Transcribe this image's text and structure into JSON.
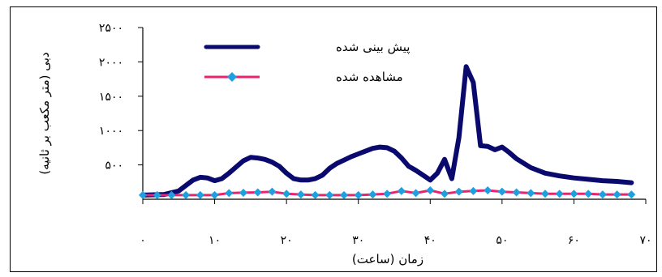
{
  "chart_data": {
    "type": "line",
    "xlabel": "زمان (ساعت)",
    "ylabel": "دبی (متر مکعب بر ثانیه)",
    "xlim": [
      0,
      70
    ],
    "ylim": [
      0,
      2500
    ],
    "x_ticks": [
      {
        "value": 0,
        "label": "۰"
      },
      {
        "value": 10,
        "label": "۱۰"
      },
      {
        "value": 20,
        "label": "۲۰"
      },
      {
        "value": 30,
        "label": "۳۰"
      },
      {
        "value": 40,
        "label": "۴۰"
      },
      {
        "value": 50,
        "label": "۵۰"
      },
      {
        "value": 60,
        "label": "۶۰"
      },
      {
        "value": 70,
        "label": "۷۰"
      }
    ],
    "y_ticks": [
      {
        "value": 500,
        "label": "۵۰۰"
      },
      {
        "value": 1000,
        "label": "۱۰۰۰"
      },
      {
        "value": 1500,
        "label": "۱۵۰۰"
      },
      {
        "value": 2000,
        "label": "۲۰۰۰"
      },
      {
        "value": 2500,
        "label": "۲۵۰۰"
      }
    ],
    "legend_position": "top-left",
    "series": [
      {
        "name": "پیش بینی شده",
        "color": "#0a0a6e",
        "marker": "none",
        "x": [
          0,
          3,
          5,
          6,
          7,
          8,
          9,
          10,
          11,
          12,
          13,
          14,
          15,
          16,
          17,
          18,
          19,
          20,
          21,
          22,
          23,
          24,
          25,
          26,
          27,
          28,
          29,
          30,
          31,
          32,
          33,
          34,
          35,
          36,
          37,
          38,
          39,
          40,
          41,
          42,
          43,
          44,
          45,
          46,
          47,
          48,
          49,
          50,
          51,
          52,
          54,
          56,
          58,
          60,
          62,
          64,
          66,
          68
        ],
        "y": [
          60,
          70,
          120,
          200,
          280,
          320,
          310,
          270,
          300,
          380,
          470,
          560,
          610,
          600,
          580,
          540,
          480,
          380,
          300,
          280,
          280,
          300,
          350,
          450,
          520,
          570,
          620,
          660,
          700,
          740,
          760,
          750,
          700,
          600,
          480,
          420,
          350,
          280,
          380,
          580,
          300,
          900,
          1930,
          1700,
          780,
          770,
          720,
          760,
          680,
          590,
          460,
          380,
          340,
          310,
          290,
          270,
          260,
          240
        ]
      },
      {
        "name": "مشاهده شده",
        "color": "#e8246e",
        "marker_color": "#1ea0e0",
        "marker": "diamond",
        "x": [
          0,
          2,
          4,
          6,
          8,
          10,
          12,
          14,
          16,
          18,
          20,
          22,
          24,
          26,
          28,
          30,
          32,
          34,
          36,
          38,
          40,
          42,
          44,
          46,
          48,
          50,
          52,
          54,
          56,
          58,
          60,
          62,
          64,
          66,
          68
        ],
        "y": [
          60,
          60,
          60,
          60,
          60,
          60,
          90,
          95,
          100,
          110,
          80,
          70,
          60,
          60,
          60,
          60,
          70,
          80,
          120,
          90,
          130,
          80,
          110,
          120,
          130,
          110,
          100,
          90,
          80,
          80,
          80,
          80,
          70,
          70,
          70
        ]
      }
    ]
  }
}
